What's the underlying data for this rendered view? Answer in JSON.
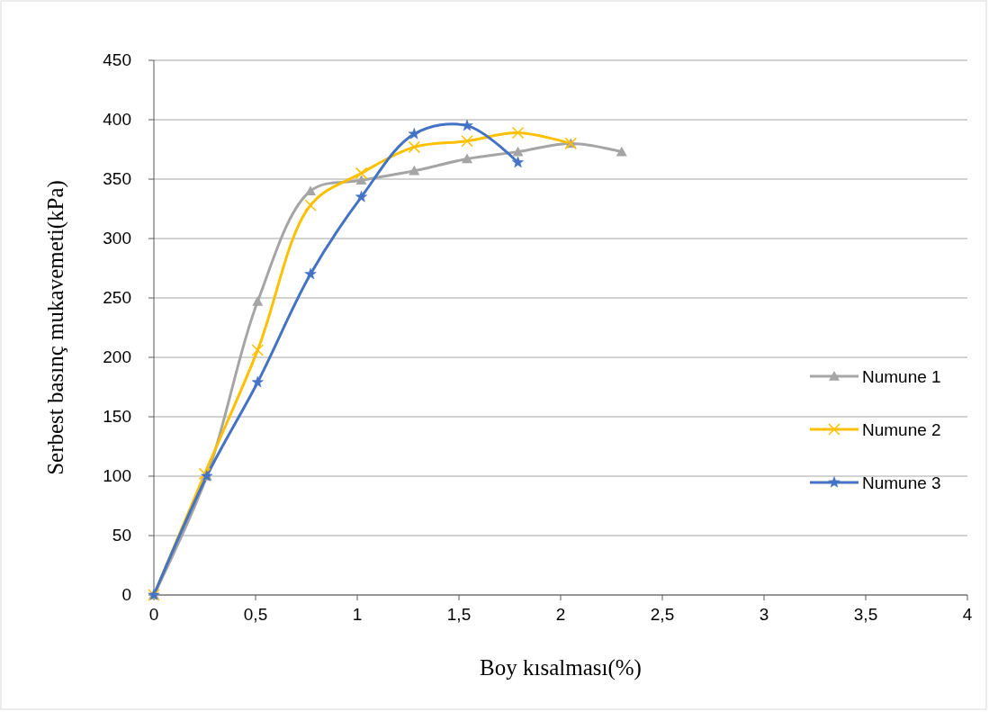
{
  "chart_data": {
    "type": "line",
    "xlabel": "Boy kısalması(%)",
    "ylabel": "Serbest basınç mukavemeti(kPa)",
    "xlim": [
      0,
      4
    ],
    "xticks": [
      0,
      {
        "value": 0.5,
        "label": "0,5"
      },
      1,
      {
        "value": 1.5,
        "label": "1,5"
      },
      2,
      {
        "value": 2.5,
        "label": "2,5"
      },
      3,
      {
        "value": 3.5,
        "label": "3,5"
      },
      4
    ],
    "ylim": [
      0,
      450
    ],
    "yticks": [
      0,
      50,
      100,
      150,
      200,
      250,
      300,
      350,
      400,
      450
    ],
    "grid": "y",
    "legend": "right",
    "series": [
      {
        "name": "Numune 1",
        "color": "#a5a5a5",
        "marker": "triangle",
        "x": [
          0,
          0.26,
          0.51,
          0.77,
          1.02,
          1.28,
          1.54,
          1.79,
          2.05,
          2.3
        ],
        "values": [
          0,
          100,
          247,
          340,
          349,
          357,
          367,
          373,
          380,
          373
        ]
      },
      {
        "name": "Numune 2",
        "color": "#ffc000",
        "marker": "cross",
        "x": [
          0,
          0.25,
          0.51,
          0.77,
          1.02,
          1.28,
          1.54,
          1.79,
          2.05
        ],
        "values": [
          0,
          102,
          206,
          328,
          355,
          377,
          382,
          389,
          380
        ]
      },
      {
        "name": "Numune 3",
        "color": "#4472c4",
        "marker": "star",
        "x": [
          0,
          0.26,
          0.51,
          0.77,
          1.02,
          1.28,
          1.54,
          1.79
        ],
        "values": [
          0,
          100,
          179,
          270,
          335,
          388,
          395,
          364
        ]
      }
    ]
  }
}
